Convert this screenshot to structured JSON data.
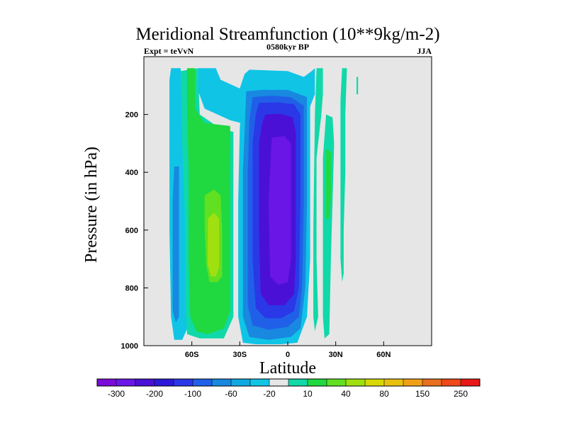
{
  "chart_data": {
    "type": "heatmap",
    "title": "Meridional Streamfunction (10**9kg/m-2)",
    "subtitle_left": "Expt = teVvN",
    "subtitle_center": "0580kyr BP",
    "subtitle_right": "JJA",
    "xlabel": "Latitude",
    "ylabel": "Pressure (in hPa)",
    "xlim": [
      -90,
      90
    ],
    "ylim": [
      1000,
      0
    ],
    "x_ticks": [
      {
        "value": -60,
        "label": "60S"
      },
      {
        "value": -30,
        "label": "30S"
      },
      {
        "value": 0,
        "label": "0"
      },
      {
        "value": 30,
        "label": "30N"
      },
      {
        "value": 60,
        "label": "60N"
      }
    ],
    "y_ticks": [
      {
        "value": 200,
        "label": "200"
      },
      {
        "value": 400,
        "label": "400"
      },
      {
        "value": 600,
        "label": "600"
      },
      {
        "value": 800,
        "label": "800"
      },
      {
        "value": 1000,
        "label": "1000"
      }
    ],
    "background_color": "#e6e6e6",
    "colorbar": {
      "colors": [
        "#7a0bd8",
        "#6a16e6",
        "#4a10d6",
        "#2c1ad8",
        "#2a38e8",
        "#2060e8",
        "#1888e0",
        "#10a8e0",
        "#10c4e6",
        "#e6e6e6",
        "#10d8a8",
        "#20d840",
        "#60e020",
        "#a0e010",
        "#d8d808",
        "#e8c010",
        "#f0a018",
        "#e87020",
        "#f04818",
        "#e81818"
      ],
      "labels": [
        "-300",
        "-200",
        "-100",
        "-60",
        "-20",
        "10",
        "40",
        "80",
        "150",
        "250"
      ]
    },
    "contours": [
      {
        "name": "sh-outer-cell",
        "value": -20,
        "color": "#10c4e6",
        "poly": [
          [
            -73,
            40
          ],
          [
            -67,
            40
          ],
          [
            -66,
            200
          ],
          [
            -64,
            600
          ],
          [
            -62,
            900
          ],
          [
            -62,
            930
          ],
          [
            -66,
            980
          ],
          [
            -71,
            980
          ],
          [
            -73,
            900
          ],
          [
            -74,
            600
          ],
          [
            -74,
            300
          ],
          [
            -74,
            80
          ]
        ]
      },
      {
        "name": "sh-outer-cell-core",
        "value": -60,
        "color": "#1888e0",
        "poly": [
          [
            -71,
            380
          ],
          [
            -68,
            380
          ],
          [
            -68,
            700
          ],
          [
            -68,
            900
          ],
          [
            -70,
            920
          ],
          [
            -72,
            880
          ],
          [
            -72,
            700
          ],
          [
            -72,
            500
          ]
        ]
      },
      {
        "name": "sh-ferrel-cell",
        "value": 10,
        "color": "#10d8a8",
        "poly": [
          [
            -67,
            50
          ],
          [
            -56,
            40
          ],
          [
            -56,
            80
          ],
          [
            -55,
            200
          ],
          [
            -42,
            250
          ],
          [
            -34,
            260
          ],
          [
            -34,
            900
          ],
          [
            -40,
            975
          ],
          [
            -55,
            975
          ],
          [
            -63,
            960
          ],
          [
            -64,
            850
          ],
          [
            -64,
            600
          ],
          [
            -66,
            300
          ]
        ]
      },
      {
        "name": "sh-ferrel-cell-40",
        "value": 40,
        "color": "#20d840",
        "poly": [
          [
            -63,
            40
          ],
          [
            -58,
            40
          ],
          [
            -58,
            180
          ],
          [
            -52,
            230
          ],
          [
            -36,
            240
          ],
          [
            -36,
            500
          ],
          [
            -36,
            880
          ],
          [
            -40,
            940
          ],
          [
            -50,
            960
          ],
          [
            -57,
            950
          ],
          [
            -61,
            900
          ],
          [
            -62,
            700
          ],
          [
            -62,
            400
          ],
          [
            -63,
            150
          ]
        ]
      },
      {
        "name": "sh-ferrel-cell-80",
        "value": 80,
        "color": "#60e020",
        "poly": [
          [
            -52,
            480
          ],
          [
            -46,
            460
          ],
          [
            -42,
            480
          ],
          [
            -41,
            600
          ],
          [
            -41,
            760
          ],
          [
            -44,
            780
          ],
          [
            -49,
            780
          ],
          [
            -51,
            720
          ],
          [
            -52,
            600
          ]
        ]
      },
      {
        "name": "sh-ferrel-cell-150",
        "value": 150,
        "color": "#a0e010",
        "poly": [
          [
            -50,
            560
          ],
          [
            -46,
            540
          ],
          [
            -43,
            560
          ],
          [
            -43,
            730
          ],
          [
            -45,
            760
          ],
          [
            -48,
            760
          ],
          [
            -50,
            720
          ],
          [
            -50,
            620
          ]
        ]
      },
      {
        "name": "upper-tropo-band",
        "value": -20,
        "color": "#10c4e6",
        "poly": [
          [
            -56,
            40
          ],
          [
            -45,
            40
          ],
          [
            -42,
            80
          ],
          [
            -30,
            110
          ],
          [
            -27,
            60
          ],
          [
            -24,
            45
          ],
          [
            0,
            50
          ],
          [
            10,
            70
          ],
          [
            15,
            50
          ],
          [
            17,
            40
          ],
          [
            17,
            130
          ],
          [
            12,
            200
          ],
          [
            3,
            240
          ],
          [
            -22,
            240
          ],
          [
            -36,
            220
          ],
          [
            -52,
            180
          ],
          [
            -56,
            120
          ]
        ]
      },
      {
        "name": "hadley-cell-20",
        "value": -20,
        "color": "#10c4e6",
        "poly": [
          [
            -28,
            100
          ],
          [
            -16,
            85
          ],
          [
            0,
            85
          ],
          [
            14,
            95
          ],
          [
            14,
            700
          ],
          [
            12,
            900
          ],
          [
            6,
            990
          ],
          [
            -4,
            995
          ],
          [
            -20,
            995
          ],
          [
            -28,
            990
          ],
          [
            -31,
            900
          ],
          [
            -31,
            500
          ],
          [
            -30,
            250
          ]
        ]
      },
      {
        "name": "hadley-cell-60",
        "value": -60,
        "color": "#1888e0",
        "poly": [
          [
            -26,
            120
          ],
          [
            -16,
            115
          ],
          [
            0,
            115
          ],
          [
            12,
            140
          ],
          [
            12,
            500
          ],
          [
            11,
            800
          ],
          [
            8,
            940
          ],
          [
            2,
            970
          ],
          [
            -12,
            980
          ],
          [
            -24,
            970
          ],
          [
            -28,
            900
          ],
          [
            -28,
            400
          ]
        ]
      },
      {
        "name": "hadley-cell-100",
        "value": -100,
        "color": "#2060e8",
        "poly": [
          [
            -22,
            140
          ],
          [
            -10,
            135
          ],
          [
            2,
            140
          ],
          [
            10,
            170
          ],
          [
            10,
            500
          ],
          [
            9,
            800
          ],
          [
            7,
            900
          ],
          [
            0,
            935
          ],
          [
            -12,
            945
          ],
          [
            -22,
            930
          ],
          [
            -25,
            860
          ],
          [
            -25,
            400
          ],
          [
            -24,
            220
          ]
        ]
      },
      {
        "name": "hadley-cell-200",
        "value": -200,
        "color": "#2a38e8",
        "poly": [
          [
            -18,
            160
          ],
          [
            -6,
            158
          ],
          [
            4,
            165
          ],
          [
            8,
            200
          ],
          [
            8,
            500
          ],
          [
            7,
            800
          ],
          [
            4,
            880
          ],
          [
            -4,
            905
          ],
          [
            -14,
            905
          ],
          [
            -20,
            870
          ],
          [
            -22,
            700
          ],
          [
            -22,
            300
          ],
          [
            -20,
            200
          ]
        ]
      },
      {
        "name": "hadley-cell-300",
        "value": -300,
        "color": "#4a10d6",
        "poly": [
          [
            -14,
            200
          ],
          [
            -4,
            198
          ],
          [
            3,
            210
          ],
          [
            5,
            260
          ],
          [
            5,
            700
          ],
          [
            4,
            820
          ],
          [
            -2,
            860
          ],
          [
            -12,
            860
          ],
          [
            -17,
            820
          ],
          [
            -18,
            600
          ],
          [
            -18,
            300
          ],
          [
            -16,
            230
          ]
        ]
      },
      {
        "name": "hadley-cell-core",
        "value": -300,
        "color": "#6a16e6",
        "poly": [
          [
            -10,
            280
          ],
          [
            -2,
            275
          ],
          [
            2,
            300
          ],
          [
            2,
            700
          ],
          [
            0,
            780
          ],
          [
            -6,
            790
          ],
          [
            -11,
            760
          ],
          [
            -12,
            500
          ]
        ]
      },
      {
        "name": "nh-cell",
        "value": 10,
        "color": "#10d8a8",
        "poly": [
          [
            18,
            40
          ],
          [
            22,
            40
          ],
          [
            22,
            130
          ],
          [
            21,
            200
          ],
          [
            18,
            350
          ],
          [
            18,
            700
          ],
          [
            19,
            900
          ],
          [
            17,
            950
          ],
          [
            16,
            900
          ],
          [
            16,
            600
          ],
          [
            17,
            200
          ]
        ]
      },
      {
        "name": "nh-upper-cell",
        "value": 10,
        "color": "#10d8a8",
        "poly": [
          [
            24,
            200
          ],
          [
            28,
            210
          ],
          [
            29,
            300
          ],
          [
            28,
            500
          ],
          [
            27,
            700
          ],
          [
            26,
            960
          ],
          [
            23,
            975
          ],
          [
            22,
            900
          ],
          [
            22,
            600
          ],
          [
            22,
            350
          ]
        ]
      },
      {
        "name": "nh-upper-cell-core",
        "value": 40,
        "color": "#20d840",
        "poly": [
          [
            24,
            320
          ],
          [
            27,
            330
          ],
          [
            27,
            480
          ],
          [
            26,
            560
          ],
          [
            24,
            560
          ],
          [
            24,
            450
          ]
        ]
      },
      {
        "name": "nh-high-cell",
        "value": 10,
        "color": "#10d8a8",
        "poly": [
          [
            34,
            40
          ],
          [
            37,
            40
          ],
          [
            36,
            200
          ],
          [
            36,
            400
          ],
          [
            35,
            600
          ],
          [
            35,
            750
          ],
          [
            34,
            780
          ],
          [
            33,
            700
          ],
          [
            33,
            400
          ],
          [
            33,
            150
          ]
        ]
      },
      {
        "name": "nh-speck",
        "value": 10,
        "color": "#10d8a8",
        "poly": [
          [
            43,
            70
          ],
          [
            44,
            70
          ],
          [
            44,
            130
          ],
          [
            43,
            130
          ]
        ]
      }
    ]
  }
}
